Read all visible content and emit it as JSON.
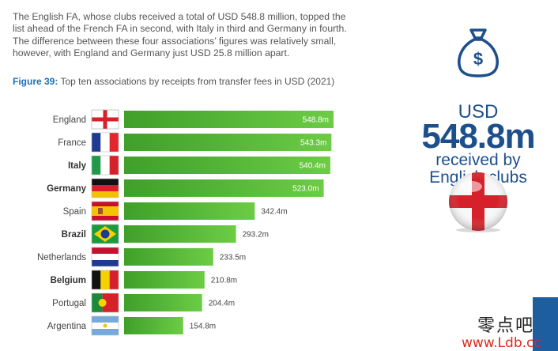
{
  "intro_text": "The English FA, whose clubs received a total of USD 548.8 million, topped the list ahead of the French FA in second, with Italy in third and Germany in fourth. The difference between these four associations’ figures was relatively small, however, with England and Germany just USD 25.8 million apart.",
  "figure": {
    "label": "Figure 39:",
    "caption": "Top ten associations by receipts from transfer fees in USD (2021)"
  },
  "highlight": {
    "currency": "USD",
    "amount": "548.8m",
    "sub_line1": "received by",
    "sub_line2": "English clubs"
  },
  "watermark": {
    "cn": "零点吧",
    "url": "www.Ldb.cc"
  },
  "colors": {
    "bar": "#5cbf3e",
    "bar_dark": "#3f9f2a",
    "accent_blue": "#1d4f8c"
  },
  "chart_data": {
    "type": "bar",
    "orientation": "horizontal",
    "title": "Top ten associations by receipts from transfer fees in USD (2021)",
    "categories": [
      "England",
      "France",
      "Italy",
      "Germany",
      "Spain",
      "Brazil",
      "Netherlands",
      "Belgium",
      "Portugal",
      "Argentina"
    ],
    "values": [
      548.8,
      543.3,
      540.4,
      523.0,
      342.4,
      293.2,
      233.5,
      210.8,
      204.4,
      154.8
    ],
    "labels": [
      "548.8m",
      "543.3m",
      "540.4m",
      "523.0m",
      "342.4m",
      "293.2m",
      "233.5m",
      "210.8m",
      "204.4m",
      "154.8m"
    ],
    "bold": [
      false,
      false,
      true,
      true,
      false,
      true,
      false,
      true,
      false,
      false
    ],
    "xlim": [
      0,
      548.8
    ],
    "grid": false
  }
}
